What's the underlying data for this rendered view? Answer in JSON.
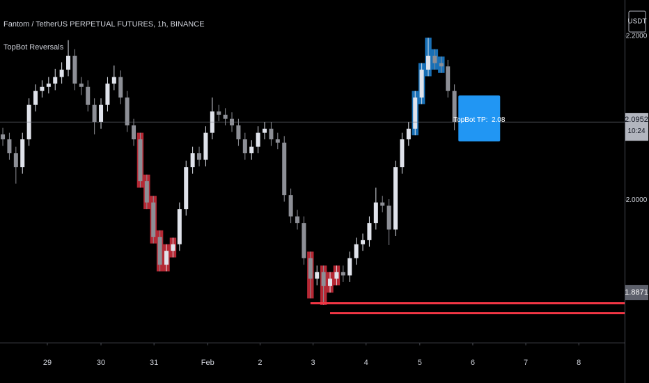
{
  "chart_data": {
    "type": "candlestick",
    "title": "Fantom / TetherUS PERPETUAL FUTURES, 1h, BINANCE",
    "indicator": "TopBot Reversals",
    "currency": "USDT",
    "up_color": "#e0e3eb",
    "down_color": "#8d8f96",
    "open": [
      2.08,
      2.074,
      2.057,
      2.04,
      2.074,
      2.116,
      2.133,
      2.138,
      2.142,
      2.15,
      2.159,
      2.176,
      2.142,
      2.138,
      2.116,
      2.095,
      2.116,
      2.142,
      2.15,
      2.125,
      2.091,
      2.074,
      2.023,
      1.997,
      1.955,
      1.921,
      1.938,
      1.946,
      1.989,
      2.04,
      2.057,
      2.049,
      2.082,
      2.108,
      2.104,
      2.099,
      2.091,
      2.074,
      2.057,
      2.065,
      2.082,
      2.087,
      2.074,
      2.07,
      2.006,
      1.98,
      1.972,
      1.929,
      1.904,
      1.912,
      1.895,
      1.904,
      1.912,
      1.908,
      1.929,
      1.946,
      1.951,
      1.972,
      1.997,
      1.993,
      1.964,
      2.04,
      2.074,
      2.087,
      2.125,
      2.159,
      2.176,
      2.167,
      2.163,
      2.133
    ],
    "high": [
      2.088,
      2.082,
      2.065,
      2.082,
      2.124,
      2.141,
      2.146,
      2.15,
      2.16,
      2.168,
      2.195,
      2.184,
      2.15,
      2.146,
      2.124,
      2.124,
      2.15,
      2.164,
      2.158,
      2.133,
      2.099,
      2.082,
      2.031,
      2.005,
      1.963,
      1.946,
      1.954,
      1.997,
      2.048,
      2.065,
      2.065,
      2.09,
      2.125,
      2.116,
      2.112,
      2.107,
      2.099,
      2.082,
      2.073,
      2.09,
      2.095,
      2.095,
      2.082,
      2.078,
      2.014,
      1.988,
      1.98,
      1.937,
      1.92,
      1.92,
      1.912,
      1.92,
      1.92,
      1.937,
      1.954,
      1.959,
      1.98,
      2.015,
      2.005,
      2.001,
      2.048,
      2.082,
      2.095,
      2.133,
      2.167,
      2.198,
      2.184,
      2.175,
      2.171,
      2.141
    ],
    "low": [
      2.066,
      2.049,
      2.02,
      2.032,
      2.066,
      2.108,
      2.125,
      2.13,
      2.134,
      2.142,
      2.151,
      2.134,
      2.128,
      2.108,
      2.08,
      2.087,
      2.108,
      2.134,
      2.117,
      2.083,
      2.066,
      2.015,
      1.989,
      1.947,
      1.913,
      1.913,
      1.93,
      1.938,
      1.981,
      2.032,
      2.041,
      2.041,
      2.074,
      2.096,
      2.091,
      2.083,
      2.066,
      2.049,
      2.049,
      2.057,
      2.074,
      2.066,
      2.062,
      1.998,
      1.972,
      1.964,
      1.921,
      1.88,
      1.896,
      1.872,
      1.887,
      1.896,
      1.9,
      1.9,
      1.921,
      1.938,
      1.943,
      1.964,
      1.985,
      1.945,
      1.956,
      2.032,
      2.066,
      2.079,
      2.117,
      2.151,
      2.159,
      2.155,
      2.125,
      2.085
    ],
    "close": [
      2.074,
      2.057,
      2.04,
      2.074,
      2.116,
      2.133,
      2.138,
      2.142,
      2.15,
      2.159,
      2.176,
      2.142,
      2.138,
      2.116,
      2.095,
      2.116,
      2.142,
      2.15,
      2.125,
      2.091,
      2.074,
      2.023,
      1.997,
      1.955,
      1.921,
      1.938,
      1.946,
      1.989,
      2.04,
      2.057,
      2.049,
      2.082,
      2.108,
      2.104,
      2.099,
      2.091,
      2.074,
      2.057,
      2.065,
      2.082,
      2.087,
      2.074,
      2.07,
      2.006,
      1.98,
      1.972,
      1.929,
      1.904,
      1.912,
      1.895,
      1.904,
      1.912,
      1.908,
      1.929,
      1.946,
      1.951,
      1.972,
      1.997,
      1.993,
      1.964,
      2.04,
      2.074,
      2.087,
      2.125,
      2.159,
      2.176,
      2.167,
      2.163,
      2.133,
      2.095
    ],
    "highlights": [
      {
        "color": "#f23645",
        "start": 21,
        "end": 26
      },
      {
        "color": "#f23645",
        "start": 47,
        "end": 47
      },
      {
        "color": "#f23645",
        "start": 49,
        "end": 51
      },
      {
        "color": "#2196f3",
        "start": 63,
        "end": 67
      }
    ],
    "levels": [
      {
        "value": 1.874,
        "start": 47,
        "color": "#f23645"
      },
      {
        "value": 1.862,
        "start": 50,
        "color": "#f23645"
      }
    ],
    "annotation": "TopBot TP:  2.08",
    "last_price": 2.0952,
    "countdown": "10:24",
    "marker_price": 1.8871,
    "xlim": [
      -0.43,
      95
    ],
    "ylim": [
      1.826,
      2.244
    ],
    "yticks": [
      {
        "value": 2.2,
        "label": "2.2000"
      },
      {
        "value": 2.0,
        "label": "2.0000"
      }
    ],
    "xticks": [
      {
        "value": 6.8,
        "label": "29"
      },
      {
        "value": 15.0,
        "label": "30"
      },
      {
        "value": 23.1,
        "label": "31"
      },
      {
        "value": 31.3,
        "label": "Feb"
      },
      {
        "value": 39.3,
        "label": "2"
      },
      {
        "value": 47.4,
        "label": "3"
      },
      {
        "value": 55.5,
        "label": "4"
      },
      {
        "value": 63.7,
        "label": "5"
      },
      {
        "value": 71.8,
        "label": "6"
      },
      {
        "value": 79.9,
        "label": "7"
      },
      {
        "value": 88.0,
        "label": "8"
      }
    ]
  }
}
